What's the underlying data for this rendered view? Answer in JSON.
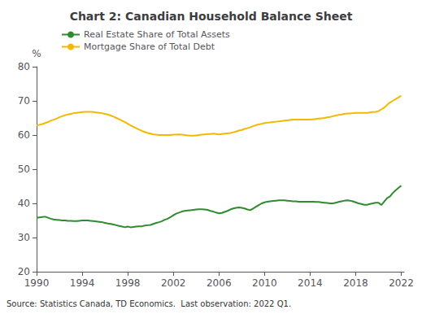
{
  "chart_data": {
    "type": "line",
    "title": "Chart 2: Canadian Household Balance Sheet",
    "ylabel": "%",
    "source": "Source: Statistics Canada, TD Economics.  Last observation: 2022 Q1.",
    "xlim": [
      1990,
      2022.25
    ],
    "xticks": [
      1990,
      1994,
      1998,
      2002,
      2006,
      2010,
      2014,
      2018,
      2022
    ],
    "ylim": [
      20,
      80
    ],
    "yticks": [
      20,
      30,
      40,
      50,
      60,
      70,
      80
    ],
    "grid": false,
    "legend": "upper left",
    "x": [
      1990,
      1990.25,
      1990.5,
      1990.75,
      1991,
      1991.25,
      1991.5,
      1991.75,
      1992,
      1992.25,
      1992.5,
      1992.75,
      1993,
      1993.25,
      1993.5,
      1993.75,
      1994,
      1994.25,
      1994.5,
      1994.75,
      1995,
      1995.25,
      1995.5,
      1995.75,
      1996,
      1996.25,
      1996.5,
      1996.75,
      1997,
      1997.25,
      1997.5,
      1997.75,
      1998,
      1998.25,
      1998.5,
      1998.75,
      1999,
      1999.25,
      1999.5,
      1999.75,
      2000,
      2000.25,
      2000.5,
      2000.75,
      2001,
      2001.25,
      2001.5,
      2001.75,
      2002,
      2002.25,
      2002.5,
      2002.75,
      2003,
      2003.25,
      2003.5,
      2003.75,
      2004,
      2004.25,
      2004.5,
      2004.75,
      2005,
      2005.25,
      2005.5,
      2005.75,
      2006,
      2006.25,
      2006.5,
      2006.75,
      2007,
      2007.25,
      2007.5,
      2007.75,
      2008,
      2008.25,
      2008.5,
      2008.75,
      2009,
      2009.25,
      2009.5,
      2009.75,
      2010,
      2010.25,
      2010.5,
      2010.75,
      2011,
      2011.25,
      2011.5,
      2011.75,
      2012,
      2012.25,
      2012.5,
      2012.75,
      2013,
      2013.25,
      2013.5,
      2013.75,
      2014,
      2014.25,
      2014.5,
      2014.75,
      2015,
      2015.25,
      2015.5,
      2015.75,
      2016,
      2016.25,
      2016.5,
      2016.75,
      2017,
      2017.25,
      2017.5,
      2017.75,
      2018,
      2018.25,
      2018.5,
      2018.75,
      2019,
      2019.25,
      2019.5,
      2019.75,
      2020,
      2020.25,
      2020.5,
      2020.75,
      2021,
      2021.25,
      2021.5,
      2021.75,
      2022
    ],
    "series": [
      {
        "name": "Real Estate Share of Total Assets",
        "color": "#2e8b2e",
        "values": [
          35.8,
          35.9,
          36.0,
          36.1,
          35.8,
          35.5,
          35.3,
          35.2,
          35.1,
          35.0,
          35.0,
          34.9,
          34.9,
          34.8,
          34.8,
          34.9,
          35.0,
          35.0,
          35.0,
          34.9,
          34.8,
          34.7,
          34.6,
          34.5,
          34.3,
          34.1,
          34.0,
          33.8,
          33.6,
          33.4,
          33.2,
          33.0,
          33.2,
          33.0,
          33.1,
          33.2,
          33.3,
          33.3,
          33.5,
          33.6,
          33.7,
          34.0,
          34.3,
          34.5,
          34.8,
          35.2,
          35.5,
          36.0,
          36.5,
          37.0,
          37.3,
          37.6,
          37.8,
          37.9,
          38.0,
          38.1,
          38.2,
          38.3,
          38.3,
          38.2,
          38.1,
          37.8,
          37.6,
          37.3,
          37.1,
          37.2,
          37.5,
          37.8,
          38.2,
          38.5,
          38.7,
          38.8,
          38.7,
          38.5,
          38.2,
          38.0,
          38.5,
          39.0,
          39.5,
          40.0,
          40.3,
          40.5,
          40.6,
          40.7,
          40.8,
          40.9,
          40.9,
          40.9,
          40.8,
          40.7,
          40.6,
          40.6,
          40.5,
          40.5,
          40.5,
          40.5,
          40.5,
          40.5,
          40.4,
          40.4,
          40.3,
          40.2,
          40.1,
          40.0,
          40.0,
          40.2,
          40.4,
          40.6,
          40.8,
          40.9,
          40.8,
          40.6,
          40.3,
          40.0,
          39.8,
          39.6,
          39.6,
          39.8,
          40.0,
          40.2,
          40.2,
          39.5,
          40.5,
          41.5,
          42.0,
          43.0,
          43.8,
          44.5,
          45.2
        ]
      },
      {
        "name": "Mortgage Share of Total Debt",
        "color": "#f5b800",
        "values": [
          62.8,
          63.0,
          63.2,
          63.5,
          63.8,
          64.2,
          64.5,
          64.8,
          65.2,
          65.5,
          65.8,
          66.0,
          66.2,
          66.4,
          66.5,
          66.6,
          66.7,
          66.8,
          66.8,
          66.8,
          66.7,
          66.6,
          66.5,
          66.4,
          66.2,
          66.0,
          65.7,
          65.4,
          65.0,
          64.6,
          64.2,
          63.8,
          63.3,
          62.8,
          62.4,
          62.0,
          61.6,
          61.2,
          60.9,
          60.6,
          60.4,
          60.2,
          60.1,
          60.0,
          60.0,
          60.0,
          60.0,
          60.0,
          60.1,
          60.1,
          60.2,
          60.1,
          60.0,
          59.9,
          59.8,
          59.8,
          59.9,
          60.0,
          60.1,
          60.2,
          60.3,
          60.3,
          60.4,
          60.3,
          60.2,
          60.3,
          60.4,
          60.5,
          60.6,
          60.8,
          61.0,
          61.3,
          61.5,
          61.8,
          62.0,
          62.3,
          62.6,
          62.9,
          63.1,
          63.3,
          63.5,
          63.6,
          63.7,
          63.8,
          63.9,
          64.0,
          64.1,
          64.2,
          64.3,
          64.4,
          64.5,
          64.5,
          64.5,
          64.5,
          64.5,
          64.5,
          64.5,
          64.6,
          64.7,
          64.8,
          64.9,
          65.0,
          65.2,
          65.3,
          65.5,
          65.7,
          65.9,
          66.0,
          66.2,
          66.3,
          66.3,
          66.4,
          66.5,
          66.5,
          66.5,
          66.5,
          66.5,
          66.6,
          66.7,
          66.8,
          67.0,
          67.5,
          68.0,
          68.8,
          69.5,
          70.0,
          70.5,
          71.0,
          71.5
        ]
      }
    ]
  }
}
